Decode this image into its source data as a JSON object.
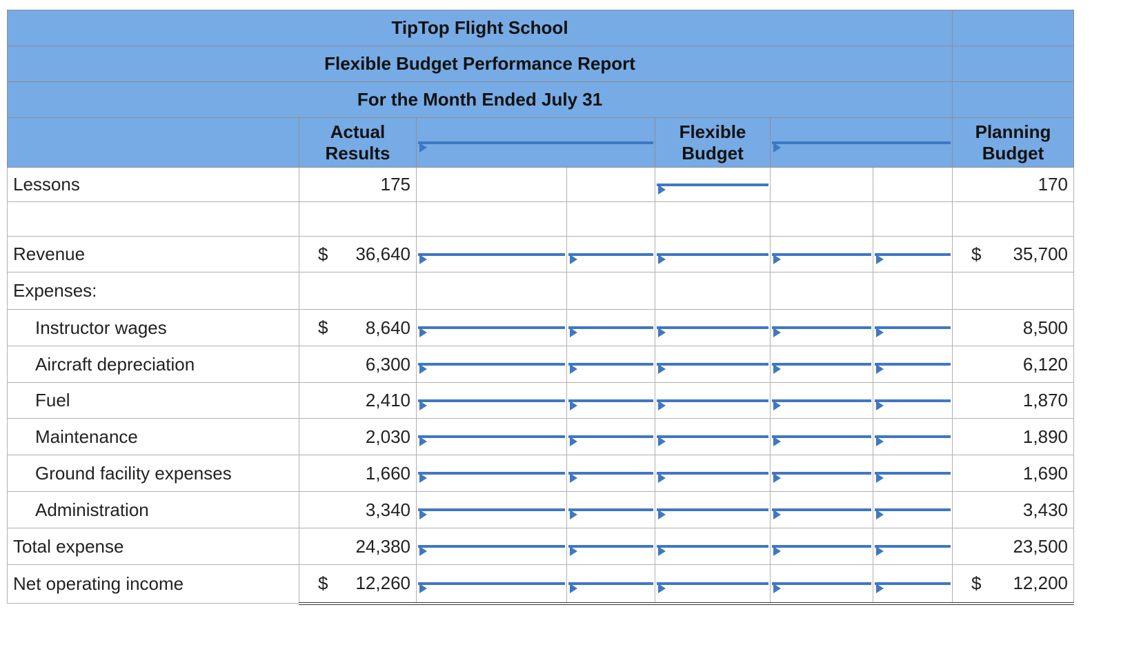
{
  "report": {
    "company": "TipTop Flight School",
    "title": "Flexible Budget Performance Report",
    "period": "For the Month Ended July 31",
    "col_actual_1": "Actual",
    "col_actual_2": "Results",
    "col_flex_1": "Flexible",
    "col_flex_2": "Budget",
    "col_plan_1": "Planning",
    "col_plan_2": "Budget",
    "currency_symbol": "$"
  },
  "rows": [
    {
      "label": "Lessons",
      "actual": "175",
      "planning": "170"
    },
    {
      "label": "",
      "actual": "",
      "planning": ""
    },
    {
      "label": "Revenue",
      "actual": "36,640",
      "planning": "35,700"
    },
    {
      "label": "Expenses:",
      "actual": "",
      "planning": ""
    },
    {
      "label": "Instructor wages",
      "actual": "8,640",
      "planning": "8,500"
    },
    {
      "label": "Aircraft depreciation",
      "actual": "6,300",
      "planning": "6,120"
    },
    {
      "label": "Fuel",
      "actual": "2,410",
      "planning": "1,870"
    },
    {
      "label": "Maintenance",
      "actual": "2,030",
      "planning": "1,890"
    },
    {
      "label": "Ground facility expenses",
      "actual": "1,660",
      "planning": "1,690"
    },
    {
      "label": "Administration",
      "actual": "3,340",
      "planning": "3,430"
    },
    {
      "label": "Total expense",
      "actual": "24,380",
      "planning": "23,500"
    },
    {
      "label": "Net operating income",
      "actual": "12,260",
      "planning": "12,200"
    }
  ],
  "colors": {
    "header_bg": "#76ABE5",
    "input_border": "#3F78C2"
  }
}
